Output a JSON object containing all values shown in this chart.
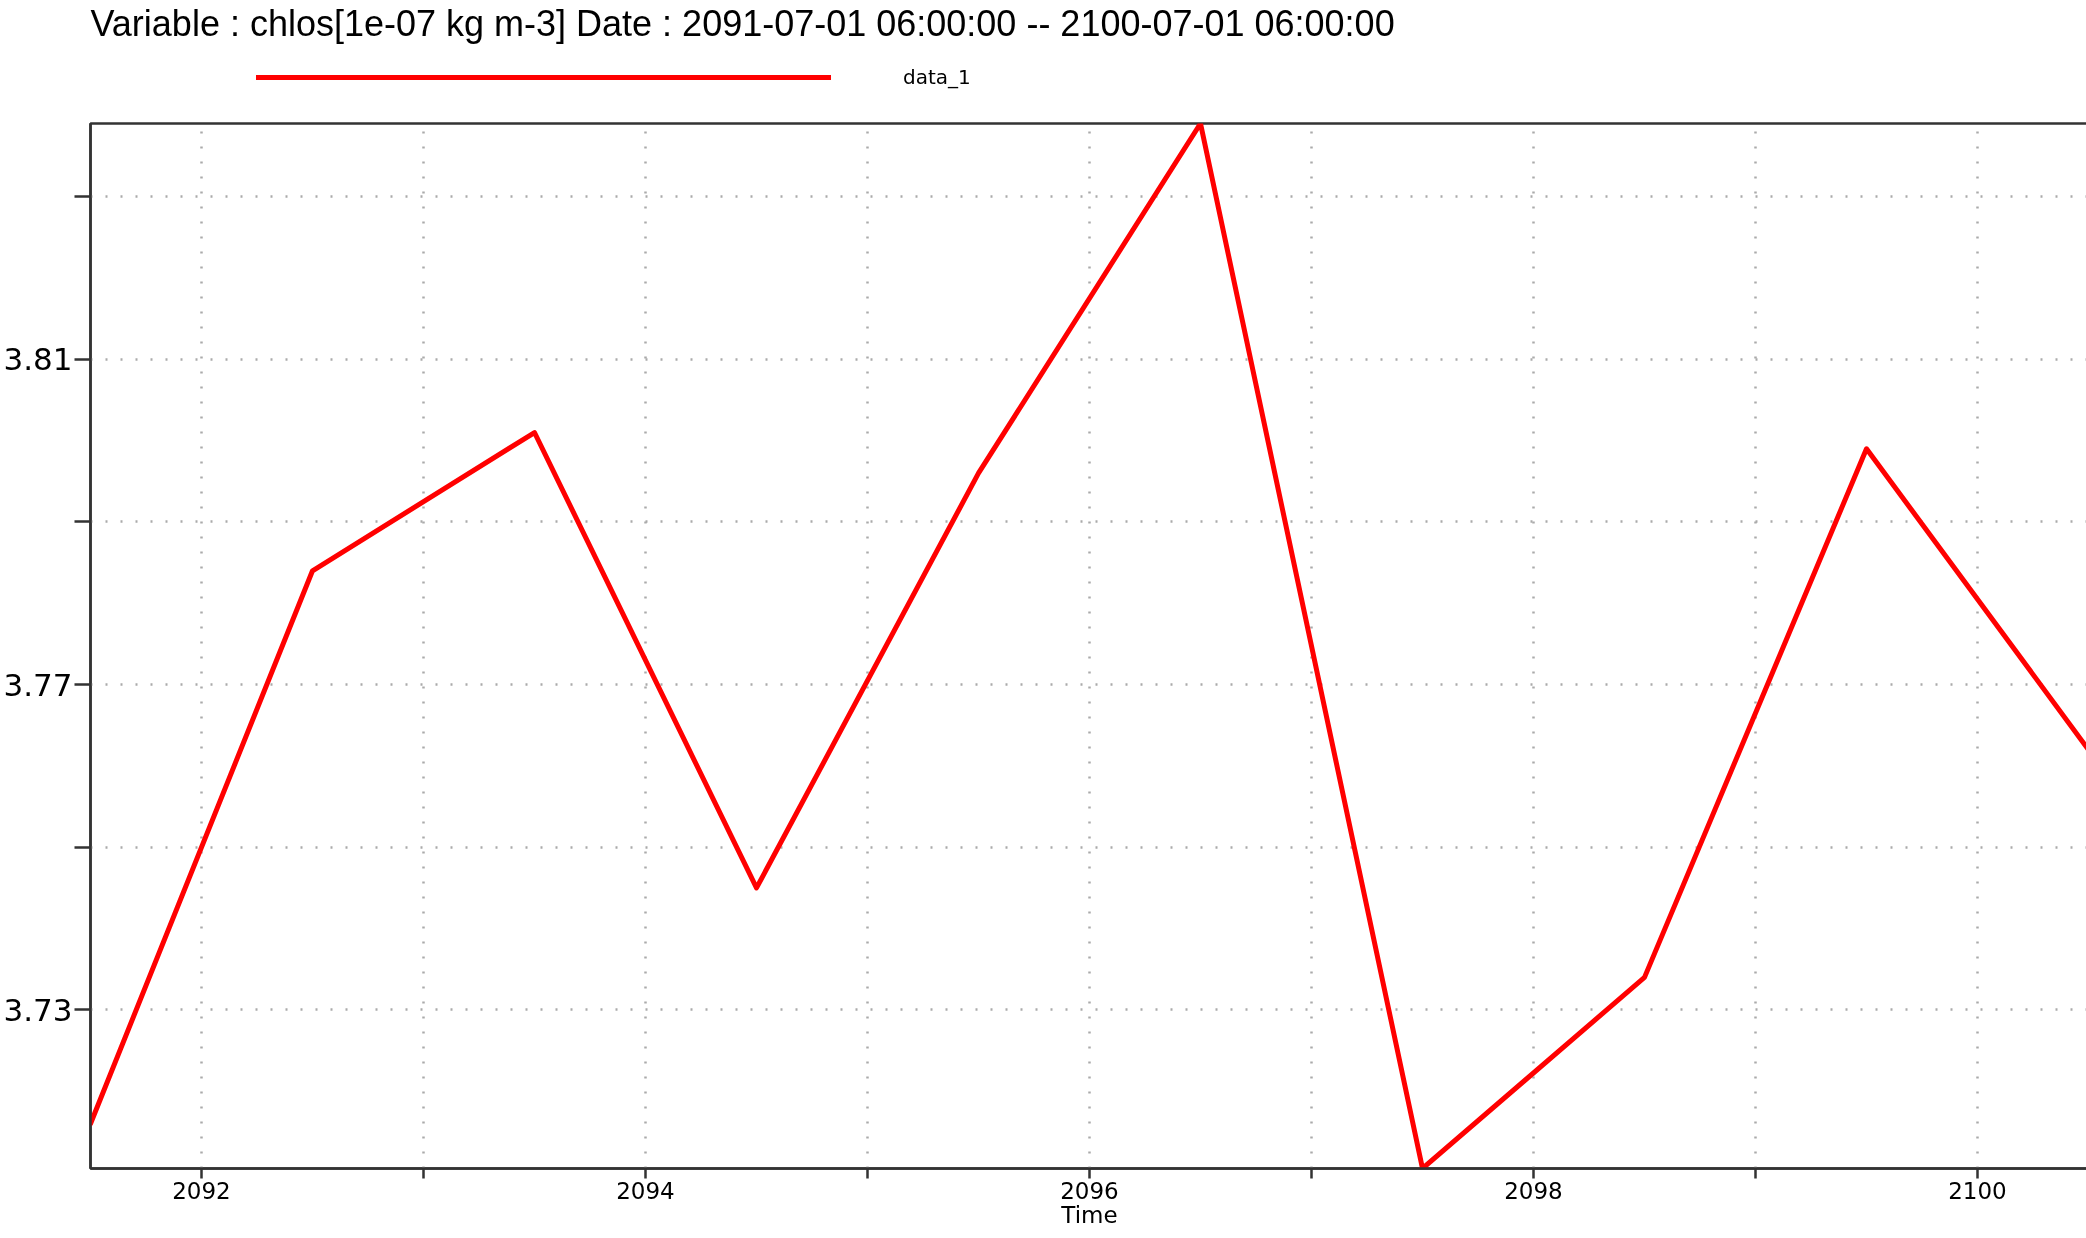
{
  "chart_data": {
    "type": "line",
    "title": "Variable : chlos[1e-07 kg m-3]  Date :  2091-07-01 06:00:00 -- 2100-07-01 06:00:00",
    "xlabel": "Time",
    "x": [
      2091.5,
      2092.5,
      2093.5,
      2094.5,
      2095.5,
      2096.5,
      2097.5,
      2098.5,
      2099.5,
      2100.5
    ],
    "series": [
      {
        "name": "data_1",
        "color": "#ff0000",
        "values": [
          3.716,
          3.784,
          3.801,
          3.745,
          3.796,
          3.839,
          3.7105,
          3.734,
          3.799,
          3.762
        ]
      }
    ],
    "xlim": [
      2091.5,
      2100.5
    ],
    "ylim": [
      3.7105,
      3.839
    ],
    "xticks": [
      2092,
      {
        "value": 2093,
        "label": null
      },
      2094,
      {
        "value": 2095,
        "label": null
      },
      2096,
      {
        "value": 2097,
        "label": null
      },
      2098,
      {
        "value": 2099,
        "label": null
      },
      2100
    ],
    "yticks": [
      3.73,
      {
        "value": 3.75,
        "label": null
      },
      3.77,
      {
        "value": 3.79,
        "label": null
      },
      3.81,
      {
        "value": 3.83,
        "label": null
      }
    ],
    "grid": true,
    "legend": "top",
    "line_style": "solid"
  }
}
